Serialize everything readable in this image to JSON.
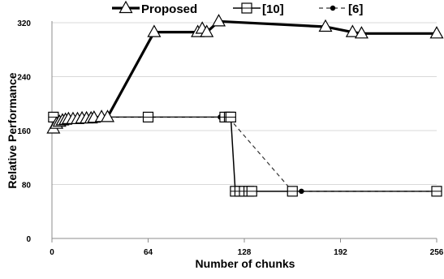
{
  "chart_data": {
    "type": "line",
    "xlabel": "Number of chunks",
    "ylabel": "Relative Performance",
    "xlim": [
      0,
      256
    ],
    "ylim": [
      0,
      320
    ],
    "xticks": [
      0,
      64,
      128,
      192,
      256
    ],
    "yticks": [
      0,
      80,
      160,
      240,
      320
    ],
    "grid": "horizontal",
    "legend_position": "top",
    "series": [
      {
        "name": "Proposed",
        "marker": "triangle",
        "line_style": "solid-thick",
        "x": [
          1,
          3,
          5,
          7,
          9,
          11,
          14,
          17,
          20,
          23,
          26,
          28,
          33,
          37,
          68,
          97,
          100,
          103,
          111,
          182,
          200,
          206,
          256
        ],
        "y": [
          163,
          170,
          173,
          175,
          176,
          177,
          177,
          177,
          178,
          178,
          178,
          179,
          180,
          180,
          306,
          306,
          311,
          306,
          322,
          314,
          306,
          304,
          304
        ]
      },
      {
        "name": "[10]",
        "marker": "square",
        "line_style": "solid-thin",
        "x": [
          1,
          64,
          115,
          118,
          119,
          122,
          125,
          128,
          131,
          133,
          160,
          256
        ],
        "y": [
          180,
          180,
          180,
          180,
          180,
          70,
          70,
          70,
          70,
          70,
          70,
          70
        ]
      },
      {
        "name": "[6]",
        "marker": "circle",
        "line_style": "dashed",
        "x": [
          1,
          64,
          112,
          118,
          160,
          166,
          256
        ],
        "y": [
          180,
          180,
          180,
          178,
          70,
          70,
          70
        ]
      }
    ]
  }
}
